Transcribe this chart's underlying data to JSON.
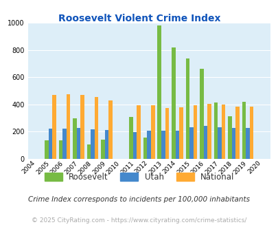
{
  "title": "Roosevelt Violent Crime Index",
  "years": [
    2004,
    2005,
    2006,
    2007,
    2008,
    2009,
    2010,
    2011,
    2012,
    2013,
    2014,
    2015,
    2016,
    2017,
    2018,
    2019,
    2020
  ],
  "roosevelt": [
    0,
    135,
    135,
    300,
    105,
    140,
    0,
    310,
    155,
    980,
    820,
    735,
    660,
    415,
    315,
    420,
    0
  ],
  "utah": [
    0,
    220,
    220,
    225,
    215,
    210,
    0,
    197,
    207,
    207,
    207,
    232,
    242,
    232,
    228,
    228,
    0
  ],
  "national": [
    0,
    470,
    475,
    468,
    455,
    430,
    0,
    395,
    395,
    375,
    377,
    394,
    402,
    400,
    385,
    385,
    0
  ],
  "roosevelt_color": "#77bb44",
  "utah_color": "#4488cc",
  "national_color": "#ffaa33",
  "bg_color": "#ddeef8",
  "ylim": [
    0,
    1000
  ],
  "yticks": [
    0,
    200,
    400,
    600,
    800,
    1000
  ],
  "footnote": "Crime Index corresponds to incidents per 100,000 inhabitants",
  "copyright": "© 2025 CityRating.com - https://www.cityrating.com/crime-statistics/",
  "title_color": "#1155bb",
  "footnote_color": "#333333",
  "copyright_color": "#aaaaaa",
  "bar_width": 0.27
}
